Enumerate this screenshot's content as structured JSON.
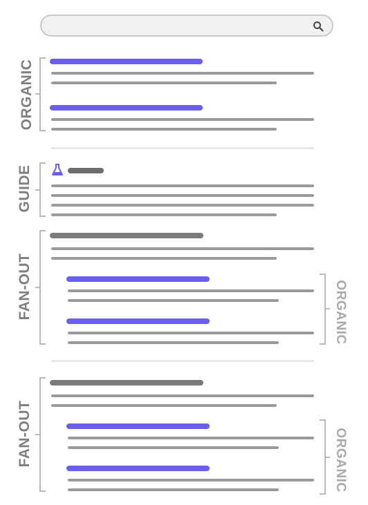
{
  "search": {
    "icon": "search-icon"
  },
  "sections": {
    "organic_label": "ORGANIC",
    "guide_label": "GUIDE",
    "fanout_1_label": "FAN-OUT",
    "fanout_1_sub_label": "ORGANIC",
    "fanout_2_label": "FAN-OUT",
    "fanout_2_sub_label": "ORGANIC",
    "guide_icon": "flask-icon"
  },
  "colors": {
    "accent": "#6a5ff0",
    "bracket": "#b9b9b9",
    "label": "#7f7f7f",
    "line": "#9a9a9a"
  }
}
